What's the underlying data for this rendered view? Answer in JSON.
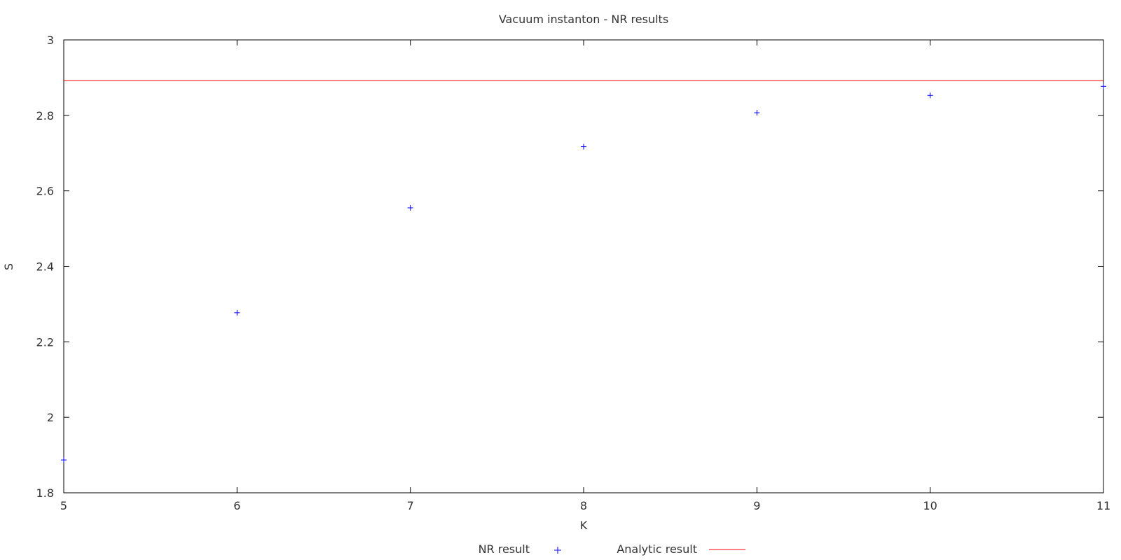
{
  "chart_data": {
    "type": "scatter",
    "title": "Vacuum instanton - NR results",
    "xlabel": "K",
    "ylabel": "S",
    "xlim": [
      5,
      11
    ],
    "ylim": [
      1.8,
      3
    ],
    "xticks": [
      "5",
      "6",
      "7",
      "8",
      "9",
      "10",
      "11"
    ],
    "yticks": [
      "1.8",
      "2",
      "2.2",
      "2.4",
      "2.6",
      "2.8",
      "3"
    ],
    "grid": false,
    "legend_position": "bottom-center",
    "series": [
      {
        "name": "NR result",
        "kind": "points",
        "marker": "plus",
        "color": "#0000ff",
        "x": [
          5,
          6,
          7,
          8,
          9,
          10,
          11
        ],
        "y": [
          1.887,
          2.277,
          2.555,
          2.717,
          2.807,
          2.853,
          2.877
        ]
      },
      {
        "name": "Analytic result",
        "kind": "hline",
        "color": "#ff0000",
        "y": 2.892
      }
    ]
  }
}
